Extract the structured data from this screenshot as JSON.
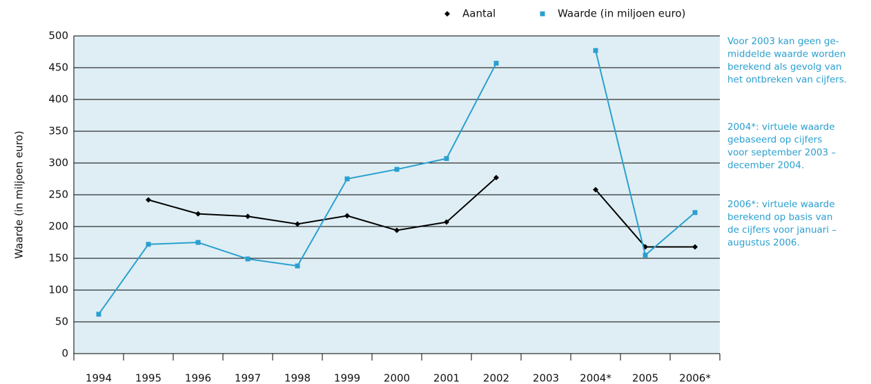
{
  "chart_data": {
    "type": "line",
    "y_label": "Waarde (in miljoen euro)",
    "categories": [
      "1994",
      "1995",
      "1996",
      "1997",
      "1998",
      "1999",
      "2000",
      "2001",
      "2002",
      "2003",
      "2004*",
      "2005",
      "2006*"
    ],
    "series": [
      {
        "name": "Aantal",
        "color": "#000000",
        "marker": "diamond",
        "values": [
          null,
          242,
          220,
          216,
          204,
          217,
          194,
          207,
          277,
          null,
          258,
          168,
          168
        ]
      },
      {
        "name": "Waarde (in miljoen euro)",
        "color": "#2a9fcf",
        "marker": "square",
        "values": [
          62,
          172,
          175,
          149,
          138,
          275,
          290,
          307,
          457,
          null,
          477,
          155,
          222
        ]
      }
    ],
    "ylim": [
      0,
      500
    ],
    "yticks": [
      0,
      50,
      100,
      150,
      200,
      250,
      300,
      350,
      400,
      450,
      500
    ],
    "grid": true,
    "background": "#deeef4",
    "notes": [
      [
        "Voor 2003 kan geen ge-",
        "middelde waarde worden",
        "berekend als gevolg van",
        "het ontbreken van cijfers."
      ],
      [
        "2004*: virtuele waarde",
        "gebaseerd op cijfers",
        "voor september 2003 –",
        "december 2004."
      ],
      [
        "2006*: virtuele waarde",
        "berekend op basis van",
        "de cijfers voor januari –",
        "augustus 2006."
      ]
    ]
  }
}
